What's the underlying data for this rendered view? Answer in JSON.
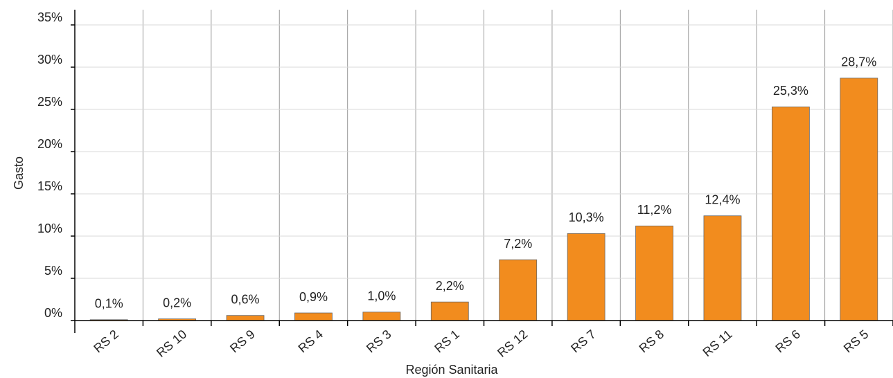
{
  "chart_data": {
    "type": "bar",
    "x_label": "Región Sanitaria",
    "y_label": "Gasto",
    "categories": [
      "RS 2",
      "RS 10",
      "RS 9",
      "RS 4",
      "RS 3",
      "RS 1",
      "RS 12",
      "RS 7",
      "RS 8",
      "RS 11",
      "RS 6",
      "RS 5"
    ],
    "values": [
      0.1,
      0.2,
      0.6,
      0.9,
      1.0,
      2.2,
      7.2,
      10.3,
      11.2,
      12.4,
      25.3,
      28.7
    ],
    "value_labels": [
      "0,1%",
      "0,2%",
      "0,6%",
      "0,9%",
      "1,0%",
      "2,2%",
      "7,2%",
      "10,3%",
      "11,2%",
      "12,4%",
      "25,3%",
      "28,7%"
    ],
    "color": "#f28c1e",
    "ylim": [
      0,
      35
    ],
    "yticks": [
      {
        "value": 0,
        "label": "0%"
      },
      {
        "value": 5,
        "label": "5%"
      },
      {
        "value": 10,
        "label": "10%"
      },
      {
        "value": 15,
        "label": "15%"
      },
      {
        "value": 20,
        "label": "20%"
      },
      {
        "value": 25,
        "label": "25%"
      },
      {
        "value": 30,
        "label": "30%"
      },
      {
        "value": 35,
        "label": "35%"
      }
    ],
    "grid": true
  }
}
